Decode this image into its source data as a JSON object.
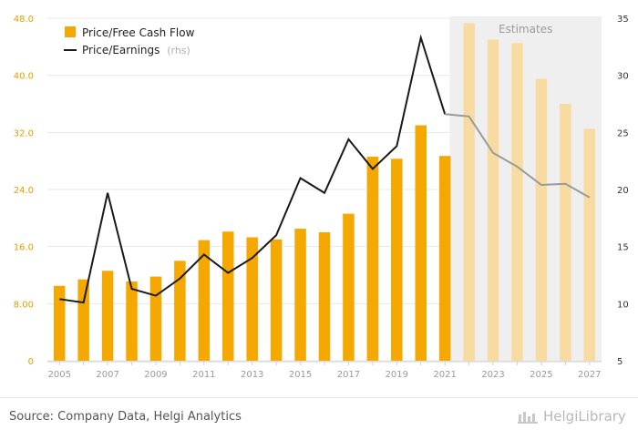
{
  "chart_data": {
    "type": "bar",
    "categories": [
      "2005",
      "2006",
      "2007",
      "2008",
      "2009",
      "2010",
      "2011",
      "2012",
      "2013",
      "2014",
      "2015",
      "2016",
      "2017",
      "2018",
      "2019",
      "2020",
      "2021",
      "2022",
      "2023",
      "2024",
      "2025",
      "2026",
      "2027"
    ],
    "x_tick_labels": [
      "2005",
      "2007",
      "2009",
      "2011",
      "2013",
      "2015",
      "2017",
      "2019",
      "2021",
      "2023",
      "2025",
      "2027"
    ],
    "series": [
      {
        "name": "Price/Free Cash Flow",
        "type": "bar",
        "axis": "left",
        "color": "#f5a800",
        "values": [
          10.5,
          11.4,
          12.6,
          11.1,
          11.8,
          14.0,
          16.9,
          18.1,
          17.3,
          17.0,
          18.5,
          18.0,
          20.6,
          28.6,
          28.3,
          33.0,
          28.7,
          47.3,
          45.0,
          44.5,
          39.5,
          36.0,
          32.5
        ]
      },
      {
        "name": "Price/Earnings",
        "name_suffix": "(rhs)",
        "type": "line",
        "axis": "right",
        "color": "#1a1a1a",
        "values": [
          10.4,
          10.1,
          19.7,
          11.3,
          10.7,
          12.2,
          14.3,
          12.7,
          14.0,
          16.0,
          21.0,
          19.7,
          24.4,
          21.8,
          23.8,
          33.3,
          26.6,
          26.4,
          23.2,
          22.0,
          20.4,
          20.5,
          19.3
        ]
      }
    ],
    "estimates_from": "2022",
    "estimates_label": "Estimates",
    "y_left": {
      "min": 0,
      "max": 48,
      "ticks": [
        "0",
        "8.00",
        "16.0",
        "24.0",
        "32.0",
        "40.0",
        "48.0"
      ],
      "tick_values": [
        0,
        8,
        16,
        24,
        32,
        40,
        48
      ],
      "tick_color": "#e0a100"
    },
    "y_right": {
      "min": 5,
      "max": 35,
      "ticks": [
        "5",
        "10",
        "15",
        "20",
        "25",
        "30",
        "35"
      ],
      "tick_values": [
        5,
        10,
        15,
        20,
        25,
        30,
        35
      ],
      "tick_color": "#333333"
    },
    "grid": true,
    "legend_position": "top-left"
  },
  "legend": {
    "item1": "Price/Free Cash Flow",
    "item2": "Price/Earnings",
    "item2_suffix": "(rhs)"
  },
  "footer": {
    "source": "Source: Company Data, Helgi Analytics",
    "logo": "HelgiLibrary"
  },
  "colors": {
    "bar": "#f5a800",
    "bar_estimate": "#f7dba0",
    "line": "#1a1a1a",
    "line_estimate": "#9a9a9a",
    "estimate_band": "#efefef",
    "grid": "#e8e8e8"
  }
}
